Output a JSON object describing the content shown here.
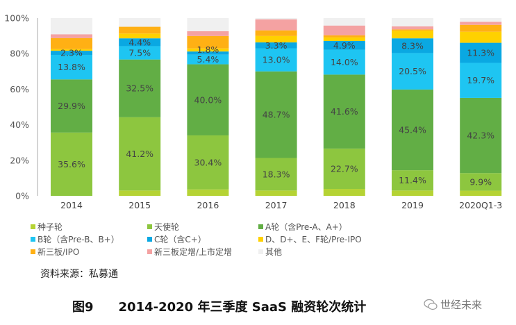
{
  "chart_data": {
    "type": "bar",
    "stacked": true,
    "categories": [
      "2014",
      "2015",
      "2016",
      "2017",
      "2018",
      "2019",
      "2020Q1-3"
    ],
    "ylim": [
      0,
      100
    ],
    "yticks": [
      "0%",
      "20%",
      "40%",
      "60%",
      "80%",
      "100%"
    ],
    "grid": false,
    "legend_placement": "bottom",
    "series": [
      {
        "name": "种子轮",
        "color": "#b5d334",
        "values": [
          0,
          3.0,
          3.6,
          3.0,
          3.9,
          3.0,
          2.9
        ],
        "labels": [
          null,
          null,
          null,
          null,
          null,
          null,
          null
        ]
      },
      {
        "name": "天使轮",
        "color": "#8dc63f",
        "values": [
          35.6,
          41.2,
          30.4,
          18.3,
          22.7,
          11.4,
          9.9
        ],
        "labels": [
          "35.6%",
          "41.2%",
          "30.4%",
          "18.3%",
          "22.7%",
          "11.4%",
          "9.9%"
        ]
      },
      {
        "name": "A轮（含Pre-A、A+）",
        "color": "#62ae45",
        "values": [
          29.9,
          32.5,
          40.0,
          48.7,
          41.6,
          45.4,
          42.3
        ],
        "labels": [
          "29.9%",
          "32.5%",
          "40.0%",
          "48.7%",
          "41.6%",
          "45.4%",
          "42.3%"
        ]
      },
      {
        "name": "B轮（含Pre-B、B+）",
        "color": "#1ec5f2",
        "values": [
          13.8,
          7.5,
          5.4,
          13.0,
          14.0,
          20.5,
          19.7
        ],
        "labels": [
          "13.8%",
          "7.5%",
          "5.4%",
          "13.0%",
          "14.0%",
          "20.5%",
          "19.7%"
        ]
      },
      {
        "name": "C轮（含C+）",
        "color": "#0aa8e2",
        "values": [
          2.3,
          4.4,
          1.8,
          3.3,
          4.9,
          8.3,
          11.3
        ],
        "labels": [
          "2.3%",
          "4.4%",
          "1.8%",
          "3.3%",
          "4.9%",
          "8.3%",
          "11.3%"
        ]
      },
      {
        "name": "D、D+、E、F轮/Pre-IPO",
        "color": "#ffd100",
        "values": [
          0.9,
          2.7,
          1.7,
          3.6,
          2.0,
          4.3,
          6.2
        ],
        "labels": [
          null,
          null,
          null,
          null,
          null,
          null,
          null
        ]
      },
      {
        "name": "新三板/IPO",
        "color": "#ffb014",
        "values": [
          6.2,
          3.8,
          7.0,
          3.2,
          1.2,
          0.7,
          3.9
        ],
        "labels": [
          null,
          null,
          null,
          null,
          null,
          null,
          null
        ]
      },
      {
        "name": "新三板定增/上市定增",
        "color": "#f4a2a2",
        "values": [
          2.2,
          0,
          2.7,
          6.2,
          5.5,
          1.7,
          1.7
        ],
        "labels": [
          null,
          null,
          null,
          null,
          null,
          null,
          null
        ]
      },
      {
        "name": "其他",
        "color": "#f0f0f0",
        "values": [
          9.1,
          4.9,
          7.4,
          0.7,
          4.2,
          4.7,
          2.1
        ],
        "labels": [
          null,
          null,
          null,
          null,
          null,
          null,
          null
        ]
      }
    ]
  },
  "source": "资料来源：私募通",
  "figure_number": "图9",
  "figure_title": "2014-2020 年三季度 SaaS 融资轮次统计",
  "watermark": "世经未来"
}
